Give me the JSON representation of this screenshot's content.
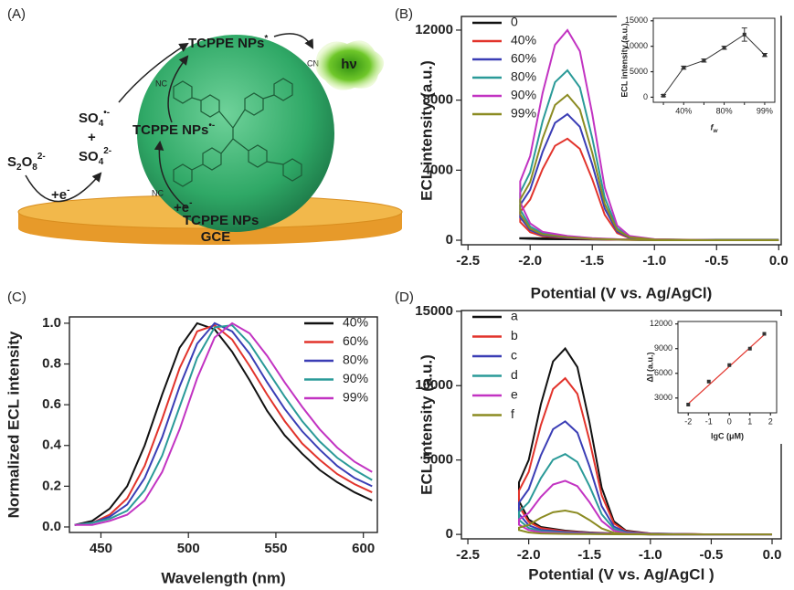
{
  "diagram": {
    "label": "(A)",
    "s2o8": [
      "S",
      "2",
      "O",
      "8",
      "2-"
    ],
    "e1": [
      "+e",
      "-"
    ],
    "so4_radical": [
      "SO",
      "4",
      "•-"
    ],
    "plus": "+",
    "so4": [
      "SO",
      "4",
      "2-"
    ],
    "nps_excited": [
      "TCPPE NPs",
      "*"
    ],
    "nps_radical": [
      "TCPPE NPs",
      "•-"
    ],
    "e2": [
      "+e",
      "-"
    ],
    "nps": "TCPPE NPs",
    "hv": "hν",
    "electrode": "GCE",
    "nc1": "NC",
    "nc2": "NC",
    "cn": "CN"
  },
  "chart_data": [
    {
      "type": "line",
      "panel": "(B)",
      "x_label": "Potential (V vs. Ag/AgCl)",
      "y_label": "ECL intensity (a.u.)",
      "legend": "upper left",
      "xlim": [
        -2.553,
        0.02
      ],
      "xticks": [
        -2.5,
        {
          "value": -2.0,
          "label": "-2.0"
        },
        -1.5,
        {
          "value": -1.0,
          "label": "-1.0"
        },
        -0.5,
        {
          "value": 0.0,
          "label": "0.0"
        }
      ],
      "ylim": [
        -260,
        12780
      ],
      "yticks": [
        0,
        4000,
        8000,
        12000
      ],
      "x": [
        0.0,
        -0.5,
        -1.0,
        -1.3,
        -1.5,
        -1.7,
        -1.9,
        -2.0,
        -2.08,
        -2.08,
        -2.0,
        -1.9,
        -1.8,
        -1.7,
        -1.6,
        -1.5,
        -1.4,
        -1.3,
        -1.2,
        -1.0,
        -0.5,
        0.0
      ],
      "series": [
        {
          "name": "0",
          "color": "#111111",
          "values": [
            20,
            20,
            20,
            30,
            40,
            50,
            60,
            80,
            100,
            120,
            120,
            110,
            100,
            100,
            90,
            80,
            60,
            40,
            30,
            20,
            20,
            20
          ]
        },
        {
          "name": "40%",
          "color": "#e2332b",
          "values": [
            0,
            0,
            0,
            30,
            60,
            120,
            230,
            460,
            1040,
            1620,
            2320,
            4060,
            5390,
            5800,
            5220,
            3480,
            1450,
            410,
            120,
            30,
            0,
            0
          ]
        },
        {
          "name": "60%",
          "color": "#3a3db5",
          "values": [
            0,
            0,
            0,
            40,
            70,
            140,
            290,
            580,
            1300,
            2020,
            2880,
            5040,
            6700,
            7200,
            6480,
            4320,
            1800,
            500,
            140,
            40,
            0,
            0
          ]
        },
        {
          "name": "80%",
          "color": "#2a9a98",
          "values": [
            0,
            0,
            0,
            50,
            100,
            190,
            390,
            780,
            1750,
            2720,
            3880,
            6790,
            9020,
            9700,
            8730,
            5820,
            2430,
            680,
            190,
            50,
            0,
            0
          ]
        },
        {
          "name": "90%",
          "color": "#c233c2",
          "values": [
            0,
            0,
            0,
            60,
            120,
            240,
            480,
            960,
            2160,
            3360,
            4800,
            8400,
            11160,
            12000,
            10800,
            7200,
            3000,
            840,
            240,
            60,
            0,
            0
          ]
        },
        {
          "name": "99%",
          "color": "#8b8b22",
          "values": [
            0,
            0,
            0,
            40,
            80,
            170,
            330,
            660,
            1490,
            2320,
            3320,
            5810,
            7720,
            8300,
            7470,
            4980,
            2080,
            580,
            170,
            40,
            0,
            0
          ]
        }
      ]
    },
    {
      "type": "line",
      "x_label": "f",
      "x_label_sub": "w",
      "y_label": "ECL intensity (a.u.)",
      "color": "#333333",
      "categories": [
        null,
        "40%",
        null,
        "80%",
        null,
        "99%"
      ],
      "values": [
        300,
        5800,
        7200,
        9700,
        12300,
        8300
      ],
      "errors": [
        200,
        300,
        300,
        300,
        1300,
        300
      ],
      "ylim": [
        -1000,
        15500
      ],
      "yticks": [
        0,
        5000,
        10000,
        15000
      ]
    },
    {
      "type": "line",
      "panel": "(C)",
      "x_label": "Wavelength (nm)",
      "y_label": "Normalized ECL intensity",
      "legend": "upper right",
      "xlim": [
        432,
        608
      ],
      "xticks": [
        450,
        500,
        550,
        600
      ],
      "ylim": [
        -0.027,
        1.031
      ],
      "yticks": [
        {
          "value": 0.0,
          "label": "0.0"
        },
        0.2,
        0.4,
        0.6,
        0.8,
        {
          "value": 1.0,
          "label": "1.0"
        }
      ],
      "x": [
        435,
        445,
        455,
        465,
        475,
        485,
        495,
        505,
        515,
        525,
        535,
        545,
        555,
        565,
        575,
        585,
        595,
        605
      ],
      "series": [
        {
          "name": "40%",
          "color": "#111111",
          "values": [
            0.01,
            0.03,
            0.09,
            0.2,
            0.4,
            0.65,
            0.88,
            1.0,
            0.97,
            0.86,
            0.72,
            0.57,
            0.45,
            0.36,
            0.28,
            0.22,
            0.17,
            0.13
          ]
        },
        {
          "name": "60%",
          "color": "#e2332b",
          "values": [
            0.01,
            0.02,
            0.06,
            0.14,
            0.3,
            0.53,
            0.78,
            0.96,
            0.99,
            0.92,
            0.79,
            0.65,
            0.52,
            0.41,
            0.33,
            0.26,
            0.21,
            0.17
          ]
        },
        {
          "name": "80%",
          "color": "#3a3db5",
          "values": [
            0.01,
            0.02,
            0.05,
            0.11,
            0.24,
            0.44,
            0.69,
            0.9,
            1.0,
            0.96,
            0.85,
            0.71,
            0.58,
            0.47,
            0.38,
            0.3,
            0.24,
            0.2
          ]
        },
        {
          "name": "90%",
          "color": "#2a9a98",
          "values": [
            0.01,
            0.02,
            0.04,
            0.08,
            0.18,
            0.35,
            0.59,
            0.83,
            0.98,
            0.99,
            0.9,
            0.77,
            0.64,
            0.52,
            0.42,
            0.34,
            0.28,
            0.23
          ]
        },
        {
          "name": "99%",
          "color": "#c233c2",
          "values": [
            0.01,
            0.01,
            0.03,
            0.06,
            0.13,
            0.27,
            0.48,
            0.73,
            0.93,
            1.0,
            0.95,
            0.84,
            0.71,
            0.59,
            0.48,
            0.39,
            0.32,
            0.27
          ]
        }
      ]
    },
    {
      "type": "line",
      "panel": "(D)",
      "x_label": "Potential (V vs. Ag/AgCl )",
      "y_label": "ECL intensity (a.u.)",
      "legend": "upper left",
      "xlim": [
        -2.553,
        0.075
      ],
      "xticks": [
        -2.5,
        {
          "value": -2.0,
          "label": "-2.0"
        },
        -1.5,
        {
          "value": -1.0,
          "label": "-1.0"
        },
        -0.5,
        {
          "value": 0.0,
          "label": "0.0"
        }
      ],
      "ylim": [
        -300,
        15050
      ],
      "yticks": [
        0,
        5000,
        10000,
        15000
      ],
      "x": [
        0.0,
        -0.5,
        -1.0,
        -1.3,
        -1.5,
        -1.7,
        -1.9,
        -2.0,
        -2.08,
        -2.08,
        -2.0,
        -1.9,
        -1.8,
        -1.7,
        -1.6,
        -1.5,
        -1.4,
        -1.3,
        -1.2,
        -1.0,
        -0.5,
        0.0
      ],
      "series": [
        {
          "name": "a",
          "color": "#111111",
          "values": [
            0,
            0,
            0,
            60,
            130,
            250,
            500,
            1000,
            2250,
            3500,
            5000,
            8750,
            11630,
            12500,
            11250,
            7500,
            3130,
            880,
            250,
            60,
            0,
            0
          ]
        },
        {
          "name": "b",
          "color": "#e2332b",
          "values": [
            0,
            0,
            0,
            50,
            110,
            210,
            420,
            840,
            1890,
            2940,
            4200,
            7350,
            9770,
            10500,
            9450,
            6300,
            2630,
            740,
            210,
            50,
            0,
            0
          ]
        },
        {
          "name": "c",
          "color": "#3a3db5",
          "values": [
            0,
            0,
            0,
            40,
            80,
            150,
            300,
            610,
            1370,
            2130,
            3040,
            5320,
            7070,
            7600,
            6840,
            4560,
            1900,
            530,
            150,
            40,
            0,
            0
          ]
        },
        {
          "name": "d",
          "color": "#2a9a98",
          "values": [
            0,
            0,
            0,
            30,
            50,
            110,
            220,
            430,
            970,
            1510,
            2160,
            3780,
            5020,
            5400,
            4860,
            3240,
            1350,
            380,
            110,
            30,
            0,
            0
          ]
        },
        {
          "name": "e",
          "color": "#c233c2",
          "values": [
            0,
            0,
            0,
            20,
            40,
            70,
            140,
            290,
            650,
            1010,
            1440,
            2520,
            3350,
            3600,
            3240,
            2160,
            900,
            250,
            70,
            20,
            0,
            0
          ]
        },
        {
          "name": "f",
          "color": "#8b8b22",
          "values": [
            0,
            0,
            0,
            10,
            20,
            30,
            60,
            130,
            290,
            450,
            640,
            1120,
            1490,
            1600,
            1440,
            960,
            400,
            110,
            30,
            10,
            0,
            0
          ]
        }
      ]
    },
    {
      "type": "scatter",
      "x_label": "lgC (μM)",
      "y_label": "ΔI (a.u.)",
      "color": "#333333",
      "xlim": [
        -2.5,
        2.3
      ],
      "xticks": [
        -2,
        -1,
        0,
        1,
        2
      ],
      "ylim": [
        1200,
        12300
      ],
      "yticks": [
        3000,
        6000,
        9000,
        12000
      ],
      "x": [
        -2,
        -1,
        0,
        1,
        1.7
      ],
      "values": [
        2200,
        5000,
        7000,
        9000,
        10800
      ],
      "fit": {
        "color": "#e2332b",
        "x": [
          -2,
          1.7
        ],
        "values": [
          2300,
          10700
        ]
      }
    }
  ]
}
